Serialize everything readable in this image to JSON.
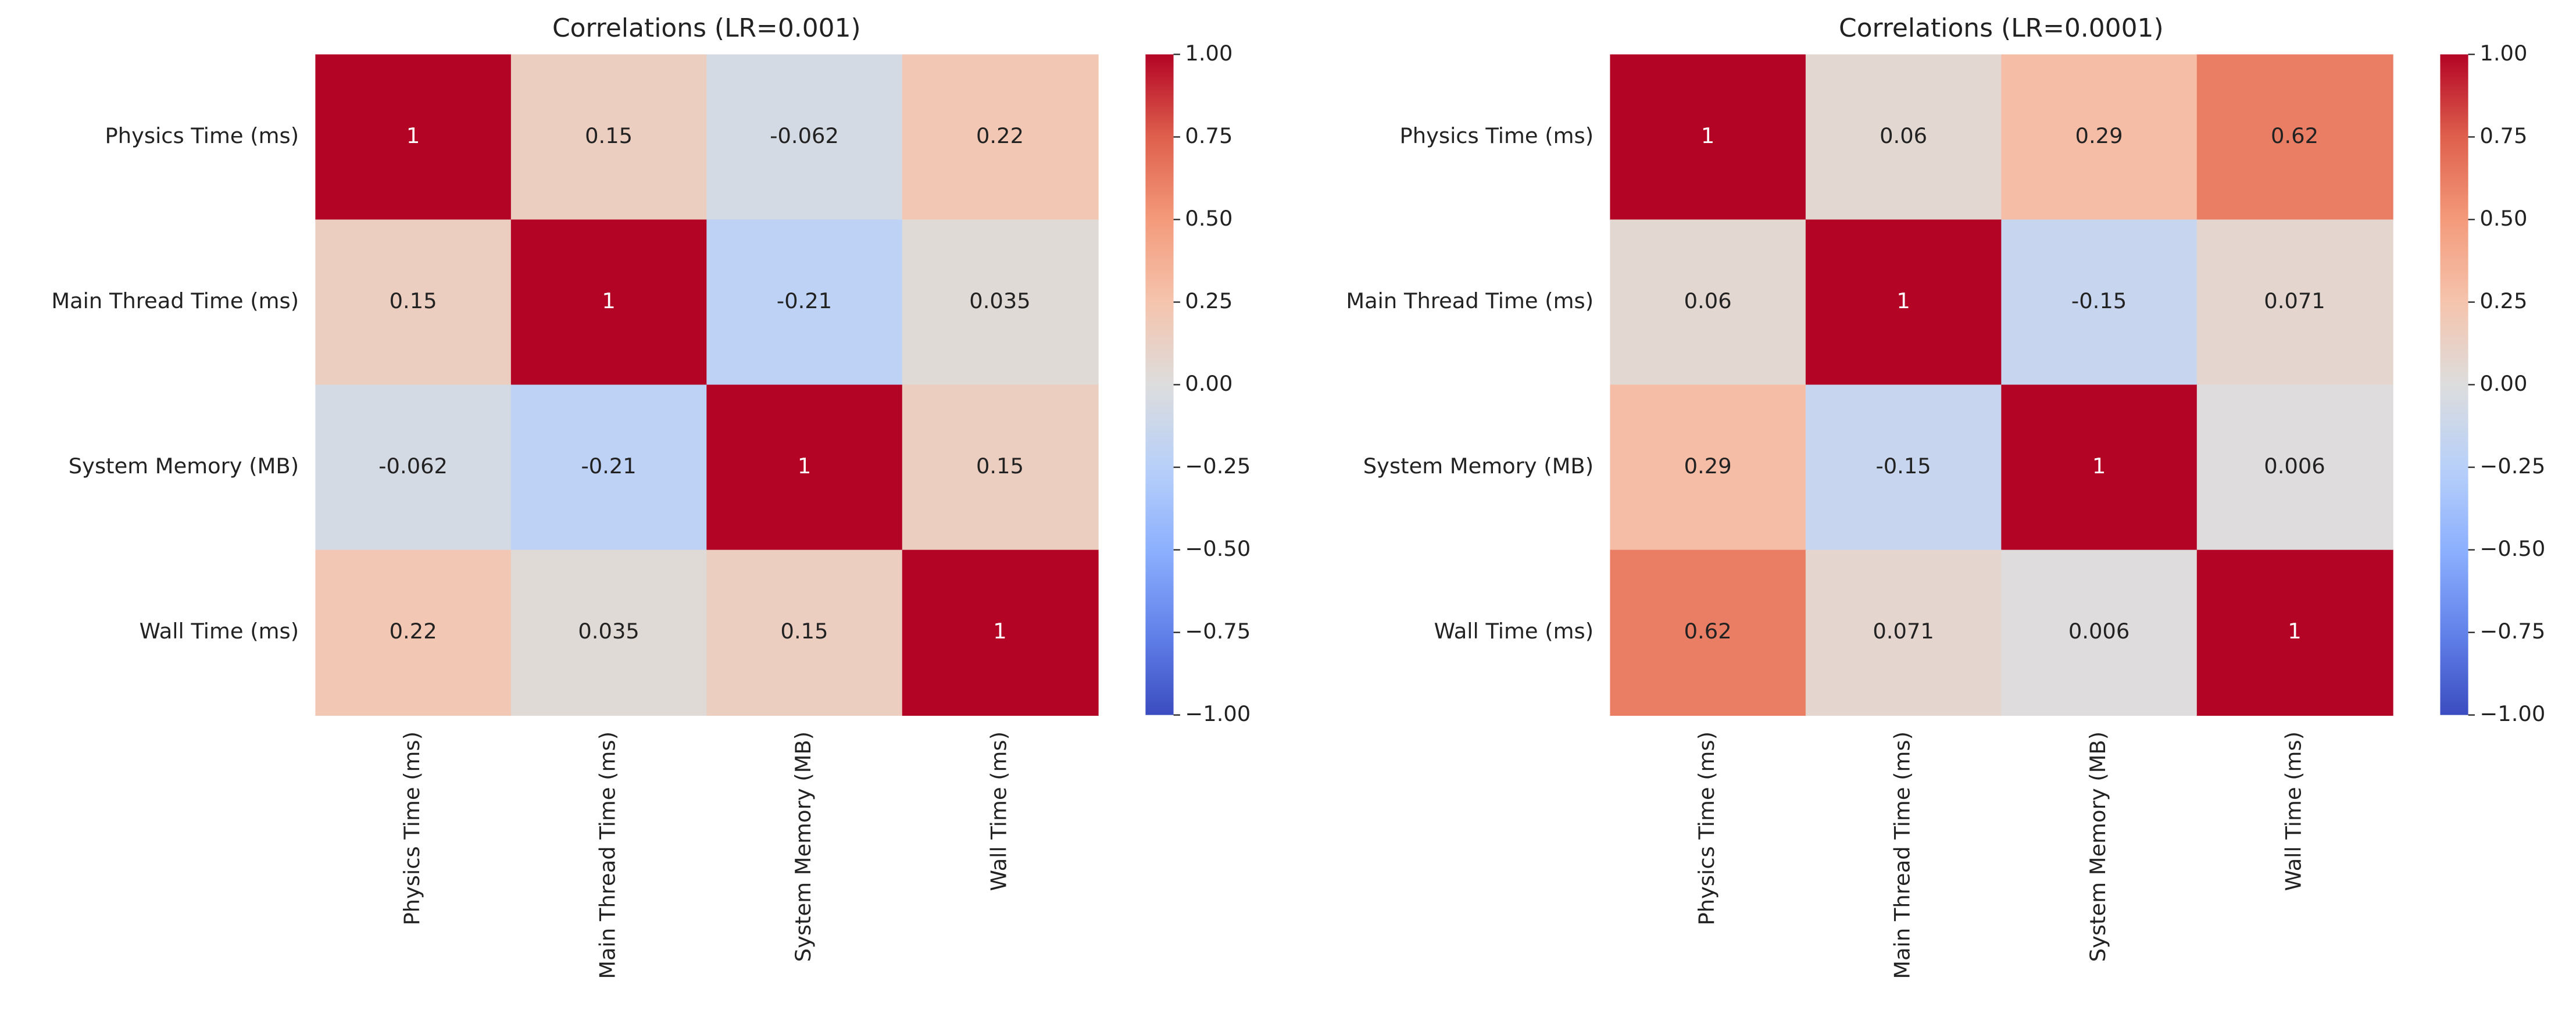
{
  "chart_data": [
    {
      "type": "heatmap",
      "title": "Correlations (LR=0.001)",
      "colormap": "coolwarm",
      "x_categories": [
        "Physics Time (ms)",
        "Main Thread Time (ms)",
        "System Memory (MB)",
        "Wall Time (ms)"
      ],
      "y_categories": [
        "Physics Time (ms)",
        "Main Thread Time (ms)",
        "System Memory (MB)",
        "Wall Time (ms)"
      ],
      "values": [
        [
          1,
          0.15,
          -0.062,
          0.22
        ],
        [
          0.15,
          1,
          -0.21,
          0.035
        ],
        [
          -0.062,
          -0.21,
          1,
          0.15
        ],
        [
          0.22,
          0.035,
          0.15,
          1
        ]
      ],
      "zlim": [
        -1,
        1
      ],
      "zticks": [
        {
          "value": 1,
          "label": "1.00"
        },
        {
          "value": 0.75,
          "label": "0.75"
        },
        {
          "value": 0.5,
          "label": "0.50"
        },
        {
          "value": 0.25,
          "label": "0.25"
        },
        {
          "value": 0,
          "label": "0.00"
        },
        {
          "value": -0.25,
          "label": "−0.25"
        },
        {
          "value": -0.5,
          "label": "−0.50"
        },
        {
          "value": -0.75,
          "label": "−0.75"
        },
        {
          "value": -1,
          "label": "−1.00"
        }
      ]
    },
    {
      "type": "heatmap",
      "title": "Correlations (LR=0.0001)",
      "colormap": "coolwarm",
      "x_categories": [
        "Physics Time (ms)",
        "Main Thread Time (ms)",
        "System Memory (MB)",
        "Wall Time (ms)"
      ],
      "y_categories": [
        "Physics Time (ms)",
        "Main Thread Time (ms)",
        "System Memory (MB)",
        "Wall Time (ms)"
      ],
      "values": [
        [
          1,
          0.06,
          0.29,
          0.62
        ],
        [
          0.06,
          1,
          -0.15,
          0.071
        ],
        [
          0.29,
          -0.15,
          1,
          0.006
        ],
        [
          0.62,
          0.071,
          0.006,
          1
        ]
      ],
      "zlim": [
        -1,
        1
      ],
      "zticks": [
        {
          "value": 1,
          "label": "1.00"
        },
        {
          "value": 0.75,
          "label": "0.75"
        },
        {
          "value": 0.5,
          "label": "0.50"
        },
        {
          "value": 0.25,
          "label": "0.25"
        },
        {
          "value": 0,
          "label": "0.00"
        },
        {
          "value": -0.25,
          "label": "−0.25"
        },
        {
          "value": -0.5,
          "label": "−0.50"
        },
        {
          "value": -0.75,
          "label": "−0.75"
        },
        {
          "value": -1,
          "label": "−1.00"
        }
      ]
    }
  ]
}
